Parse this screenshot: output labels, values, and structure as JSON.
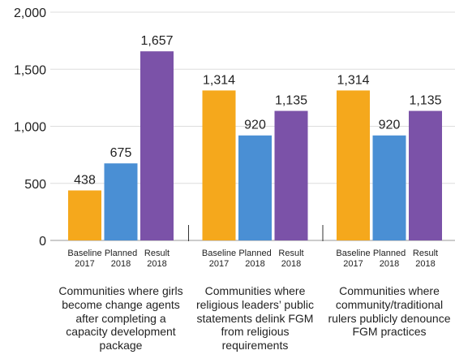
{
  "chart_data": {
    "type": "bar",
    "categories": [
      "Communities where girls become change agents after completing a capacity development package",
      "Communities where religious leaders’ public statements delink FGM from religious requirements",
      "Communities where community/traditional rulers publicly denounce FGM practices"
    ],
    "series": [
      {
        "name": "Baseline 2017",
        "color": "#f5a81c",
        "values": [
          438,
          1314,
          1314
        ],
        "value_labels": [
          "438",
          "1,314",
          "1,314"
        ]
      },
      {
        "name": "Planned 2018",
        "color": "#4a8fd4",
        "values": [
          675,
          920,
          920
        ],
        "value_labels": [
          "675",
          "920",
          "920"
        ]
      },
      {
        "name": "Result 2018",
        "color": "#7b52a8",
        "values": [
          1657,
          1135,
          1135
        ],
        "value_labels": [
          "1,657",
          "1,135",
          "1,135"
        ]
      }
    ],
    "ylim": [
      0,
      2000
    ],
    "yticks": [
      0,
      500,
      {
        "value": 1000,
        "label": "1,000"
      },
      {
        "value": 1500,
        "label": "1,500"
      },
      {
        "value": 2000,
        "label": "2,000"
      }
    ],
    "grid": true
  }
}
